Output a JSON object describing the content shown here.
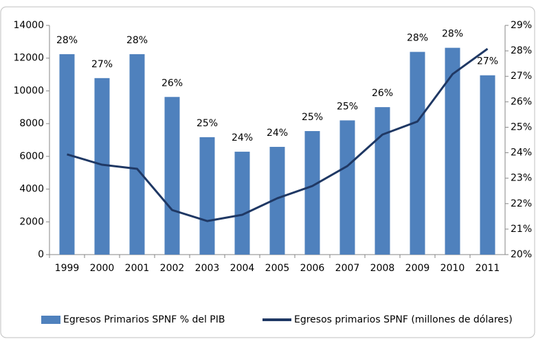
{
  "chart_data": {
    "type": "bar-line",
    "categories": [
      "1999",
      "2000",
      "2001",
      "2002",
      "2003",
      "2004",
      "2005",
      "2006",
      "2007",
      "2008",
      "2009",
      "2010",
      "2011"
    ],
    "series": [
      {
        "name": "Egresos Primarios SPNF % del PIB",
        "type": "bar",
        "axis": "y2",
        "color": "#4f81bd",
        "values": [
          27.87,
          26.93,
          27.87,
          26.19,
          24.61,
          24.04,
          24.23,
          24.85,
          25.27,
          25.79,
          27.96,
          28.12,
          27.04
        ],
        "value_labels": [
          "28%",
          "27%",
          "28%",
          "26%",
          "25%",
          "24%",
          "24%",
          "25%",
          "25%",
          "26%",
          "28%",
          "28%",
          "27%"
        ]
      },
      {
        "name": "Egresos primarios SPNF (millones de dólares)",
        "type": "line",
        "color": "#1f3864",
        "values": [
          6120,
          5490,
          5240,
          2720,
          2050,
          2430,
          3440,
          4190,
          5410,
          7330,
          8130,
          11020,
          12570
        ]
      }
    ],
    "ylim": [
      0,
      14000
    ],
    "yticks": [
      0,
      2000,
      4000,
      6000,
      8000,
      10000,
      12000,
      14000
    ],
    "y2lim": [
      20,
      29
    ],
    "y2ticks": [
      {
        "value": 20,
        "label": "20%"
      },
      {
        "value": 21,
        "label": "21%"
      },
      {
        "value": 22,
        "label": "22%"
      },
      {
        "value": 23,
        "label": "23%"
      },
      {
        "value": 24,
        "label": "24%"
      },
      {
        "value": 25,
        "label": "25%"
      },
      {
        "value": 26,
        "label": "26%"
      },
      {
        "value": 27,
        "label": "27%"
      },
      {
        "value": 28,
        "label": "28%"
      },
      {
        "value": 29,
        "label": "29%"
      }
    ],
    "legend": "bottom"
  }
}
